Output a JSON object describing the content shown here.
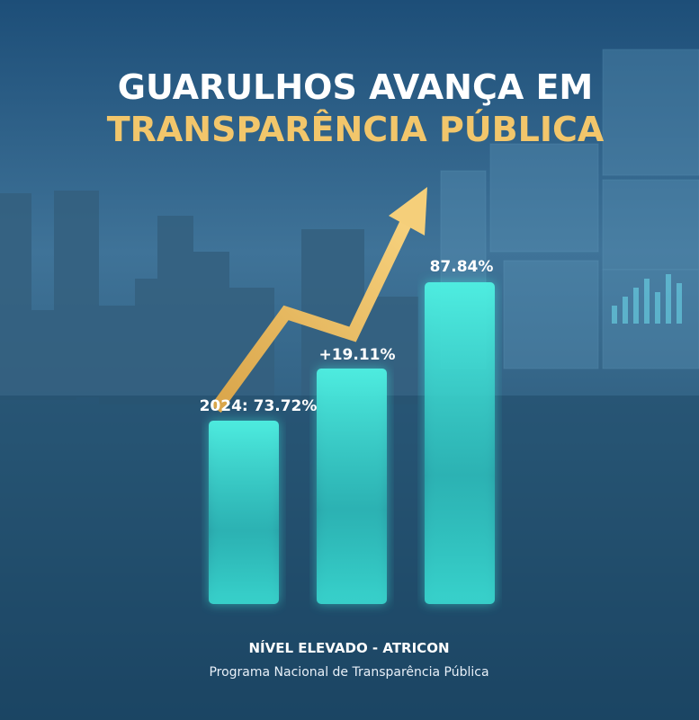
{
  "header": {
    "title_line1": "GUARULHOS AVANÇA EM",
    "title_line2": "TRANSPARÊNCIA PÚBLICA"
  },
  "labels": [
    "2024: 73.72%",
    "+19.11%",
    "87.84%"
  ],
  "footer": {
    "title": "NÍVEL ELEVADO - ATRICON",
    "subtitle": "Programa Nacional de Transparência Pública"
  }
}
